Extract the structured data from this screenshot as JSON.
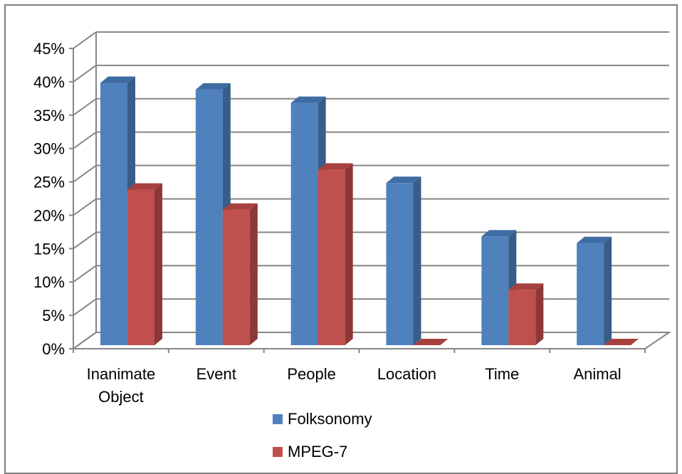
{
  "chart_data": {
    "type": "bar",
    "categories": [
      [
        "Inanimate",
        "Object"
      ],
      [
        "Event"
      ],
      [
        "People"
      ],
      [
        "Location"
      ],
      [
        "Time"
      ],
      [
        "Animal"
      ]
    ],
    "series": [
      {
        "name": "Folksonomy",
        "values": [
          41,
          40,
          38,
          26,
          18,
          17
        ],
        "color": "#4f81bd",
        "side": "#385d8a",
        "top": "#3f6ca3"
      },
      {
        "name": "MPEG-7",
        "values": [
          25,
          22,
          28,
          0,
          10,
          0
        ],
        "color": "#c0504d",
        "side": "#8c3836",
        "top": "#a7413e"
      }
    ],
    "y_ticks": [
      "0%",
      "5%",
      "10%",
      "15%",
      "20%",
      "25%",
      "30%",
      "35%",
      "40%",
      "45%"
    ],
    "ylim": [
      0,
      45
    ],
    "grid": true,
    "legend_position": "bottom",
    "style": "3d-clustered-column"
  }
}
